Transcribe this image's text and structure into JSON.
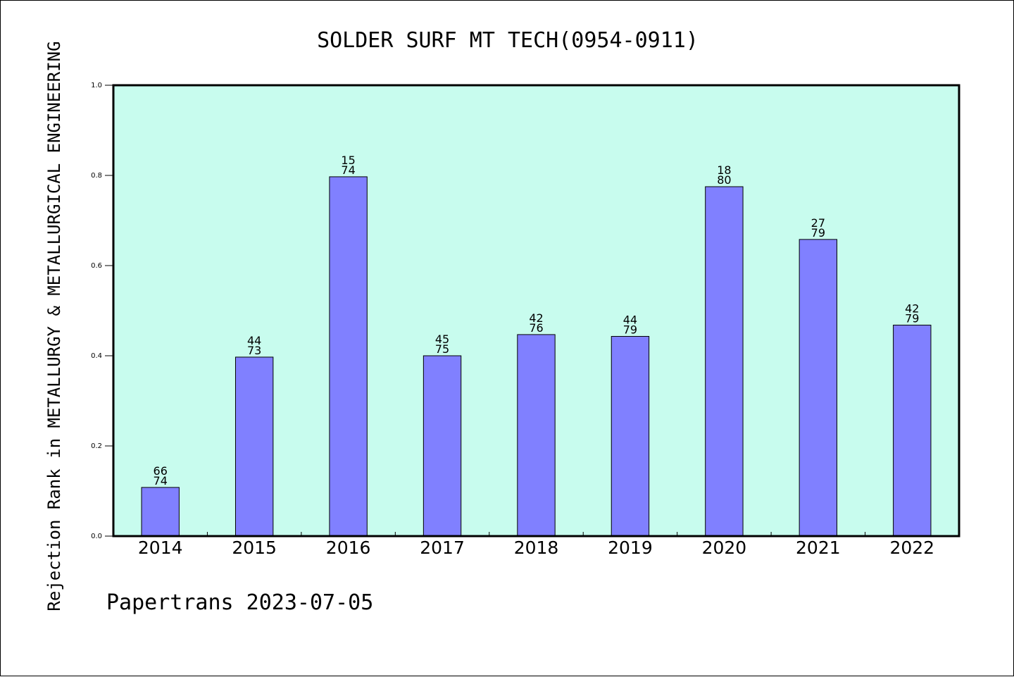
{
  "chart_data": {
    "type": "bar",
    "title": "SOLDER SURF MT TECH(0954-0911)",
    "ylabel": "Rejection Rank in METALLURGY & METALLURGICAL ENGINEERING",
    "xlabel": "",
    "footer": "Papertrans 2023-07-05",
    "categories": [
      "2014",
      "2015",
      "2016",
      "2017",
      "2018",
      "2019",
      "2020",
      "2021",
      "2022"
    ],
    "values": [
      0.108,
      0.397,
      0.797,
      0.4,
      0.447,
      0.443,
      0.775,
      0.658,
      0.468
    ],
    "bar_labels": [
      [
        "66",
        "74"
      ],
      [
        "44",
        "73"
      ],
      [
        "15",
        "74"
      ],
      [
        "45",
        "75"
      ],
      [
        "42",
        "76"
      ],
      [
        "44",
        "79"
      ],
      [
        "18",
        "80"
      ],
      [
        "27",
        "79"
      ],
      [
        "42",
        "79"
      ]
    ],
    "ylim": [
      0,
      1.0
    ],
    "yticks": [
      "0.0",
      "0.2",
      "0.4",
      "0.6",
      "0.8",
      "1.0"
    ],
    "grid": false,
    "legend": "none",
    "colors": {
      "plot_background": "#c8fcee",
      "bar_fill": "#8080ff",
      "bar_stroke": "#000000",
      "text": "#000000"
    }
  }
}
